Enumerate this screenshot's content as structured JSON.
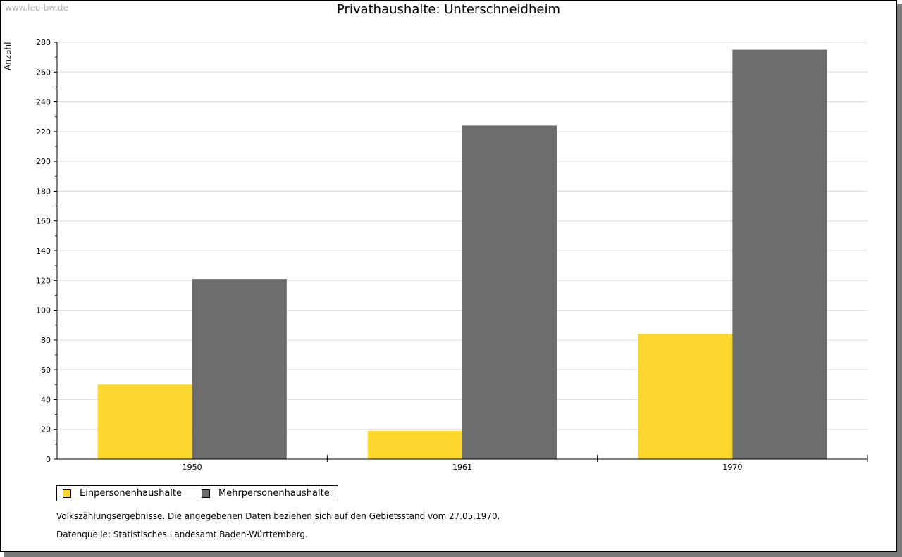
{
  "watermark": "www.leo-bw.de",
  "chart_data": {
    "type": "bar",
    "title": "Privathaushalte: Unterschneidheim",
    "ylabel": "Anzahl",
    "xlabel": "",
    "categories": [
      "1950",
      "1961",
      "1970"
    ],
    "series": [
      {
        "name": "Einpersonenhaushalte",
        "color": "#fdd72d",
        "values": [
          50,
          19,
          84
        ]
      },
      {
        "name": "Mehrpersonenhaushalte",
        "color": "#6d6d6d",
        "values": [
          121,
          224,
          275
        ]
      }
    ],
    "ylim": [
      0,
      280
    ],
    "yticks": [
      0,
      20,
      40,
      60,
      80,
      100,
      120,
      140,
      160,
      180,
      200,
      220,
      240,
      260,
      280
    ],
    "grid": true,
    "legend_position": "bottom-left"
  },
  "notes": {
    "line1": "Volkszählungsergebnisse. Die angegebenen Daten beziehen sich auf den Gebietsstand vom 27.05.1970.",
    "line2": "Datenquelle: Statistisches Landesamt Baden-Württemberg."
  }
}
